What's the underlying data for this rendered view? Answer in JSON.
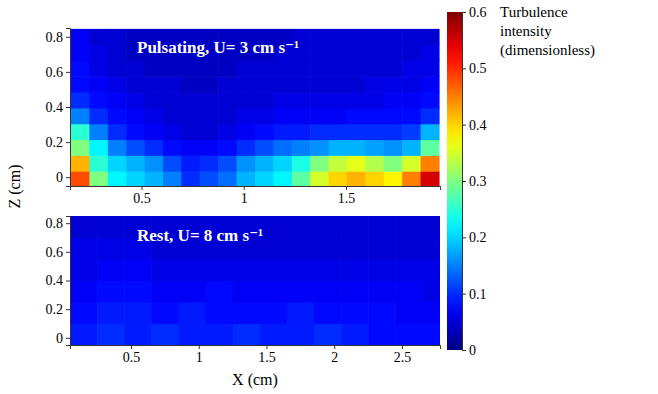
{
  "chart_data": {
    "type": "heatmap",
    "x_label": "X (cm)",
    "y_label": "Z (cm)",
    "colorbar": {
      "title": "Turbulence intensity (dimensionless)",
      "range": [
        0,
        0.6
      ],
      "ticks": [
        0,
        0.1,
        0.2,
        0.3,
        0.4,
        0.5,
        0.6
      ]
    },
    "panels": [
      {
        "title": "Pulsating, U= 3 cm s⁻¹",
        "xlim": [
          0.15,
          1.96
        ],
        "xticks": [
          0.5,
          1,
          1.5
        ],
        "ylim": [
          -0.05,
          0.85
        ],
        "yticks": [
          0,
          0.2,
          0.4,
          0.6,
          0.8
        ],
        "x": [
          0.2,
          0.29,
          0.38,
          0.47,
          0.56,
          0.65,
          0.74,
          0.83,
          0.92,
          1.01,
          1.1,
          1.19,
          1.28,
          1.37,
          1.46,
          1.55,
          1.64,
          1.73,
          1.82,
          1.91
        ],
        "y": [
          -0.01,
          0.08,
          0.17,
          0.26,
          0.35,
          0.44,
          0.53,
          0.62,
          0.71,
          0.8
        ],
        "values": [
          [
            0.48,
            0.3,
            0.22,
            0.2,
            0.18,
            0.15,
            0.1,
            0.12,
            0.14,
            0.18,
            0.2,
            0.22,
            0.28,
            0.35,
            0.4,
            0.42,
            0.4,
            0.38,
            0.45,
            0.55
          ],
          [
            0.42,
            0.25,
            0.2,
            0.18,
            0.16,
            0.12,
            0.09,
            0.1,
            0.12,
            0.16,
            0.18,
            0.2,
            0.24,
            0.3,
            0.34,
            0.36,
            0.33,
            0.3,
            0.35,
            0.45
          ],
          [
            0.3,
            0.22,
            0.15,
            0.12,
            0.1,
            0.08,
            0.07,
            0.07,
            0.08,
            0.1,
            0.12,
            0.14,
            0.15,
            0.16,
            0.18,
            0.18,
            0.17,
            0.16,
            0.18,
            0.28
          ],
          [
            0.25,
            0.15,
            0.1,
            0.08,
            0.07,
            0.06,
            0.05,
            0.05,
            0.06,
            0.07,
            0.08,
            0.09,
            0.09,
            0.1,
            0.1,
            0.1,
            0.1,
            0.1,
            0.11,
            0.18
          ],
          [
            0.15,
            0.1,
            0.08,
            0.07,
            0.06,
            0.05,
            0.05,
            0.05,
            0.05,
            0.06,
            0.06,
            0.07,
            0.07,
            0.07,
            0.07,
            0.08,
            0.08,
            0.08,
            0.08,
            0.1
          ],
          [
            0.1,
            0.08,
            0.07,
            0.06,
            0.05,
            0.05,
            0.05,
            0.05,
            0.05,
            0.05,
            0.05,
            0.06,
            0.06,
            0.06,
            0.06,
            0.06,
            0.06,
            0.07,
            0.07,
            0.08
          ],
          [
            0.08,
            0.07,
            0.06,
            0.05,
            0.05,
            0.05,
            0.04,
            0.04,
            0.05,
            0.05,
            0.05,
            0.05,
            0.05,
            0.05,
            0.05,
            0.05,
            0.06,
            0.06,
            0.06,
            0.07
          ],
          [
            0.08,
            0.06,
            0.05,
            0.05,
            0.04,
            0.04,
            0.04,
            0.04,
            0.04,
            0.05,
            0.05,
            0.05,
            0.05,
            0.05,
            0.05,
            0.05,
            0.05,
            0.05,
            0.06,
            0.06
          ],
          [
            0.07,
            0.06,
            0.05,
            0.04,
            0.04,
            0.04,
            0.04,
            0.04,
            0.04,
            0.04,
            0.04,
            0.05,
            0.05,
            0.05,
            0.05,
            0.05,
            0.05,
            0.05,
            0.05,
            0.06
          ],
          [
            0.07,
            0.05,
            0.05,
            0.04,
            0.04,
            0.04,
            0.04,
            0.04,
            0.04,
            0.04,
            0.04,
            0.04,
            0.05,
            0.05,
            0.05,
            0.05,
            0.05,
            0.05,
            0.05,
            0.05
          ]
        ]
      },
      {
        "title": "Rest, U= 8 cm s⁻¹",
        "xlim": [
          0.05,
          2.78
        ],
        "xticks": [
          0.5,
          1,
          1.5,
          2,
          2.5
        ],
        "ylim": [
          -0.05,
          0.85
        ],
        "yticks": [
          0,
          0.2,
          0.4,
          0.6,
          0.8
        ],
        "x": [
          0.15,
          0.35,
          0.55,
          0.75,
          0.95,
          1.15,
          1.35,
          1.55,
          1.75,
          1.95,
          2.15,
          2.35,
          2.55,
          2.75
        ],
        "y": [
          0.025,
          0.175,
          0.325,
          0.475,
          0.625,
          0.775
        ],
        "values": [
          [
            0.09,
            0.1,
            0.09,
            0.1,
            0.09,
            0.09,
            0.1,
            0.09,
            0.09,
            0.1,
            0.09,
            0.08,
            0.08,
            0.08
          ],
          [
            0.08,
            0.09,
            0.09,
            0.08,
            0.09,
            0.08,
            0.08,
            0.08,
            0.09,
            0.08,
            0.08,
            0.08,
            0.07,
            0.07
          ],
          [
            0.07,
            0.08,
            0.08,
            0.07,
            0.07,
            0.08,
            0.07,
            0.07,
            0.07,
            0.07,
            0.07,
            0.07,
            0.07,
            0.06
          ],
          [
            0.06,
            0.07,
            0.07,
            0.06,
            0.06,
            0.06,
            0.06,
            0.06,
            0.06,
            0.06,
            0.06,
            0.06,
            0.06,
            0.06
          ],
          [
            0.06,
            0.06,
            0.06,
            0.05,
            0.05,
            0.05,
            0.05,
            0.05,
            0.05,
            0.05,
            0.05,
            0.05,
            0.05,
            0.05
          ],
          [
            0.05,
            0.05,
            0.05,
            0.05,
            0.05,
            0.05,
            0.05,
            0.05,
            0.05,
            0.05,
            0.05,
            0.05,
            0.05,
            0.05
          ]
        ]
      }
    ]
  }
}
